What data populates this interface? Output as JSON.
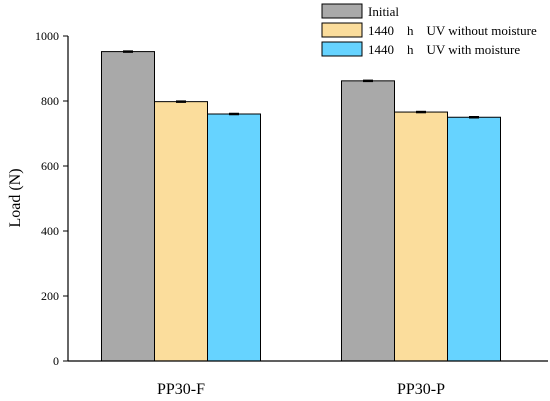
{
  "chart_data": {
    "type": "bar",
    "categories": [
      "PP30-F",
      "PP30-P"
    ],
    "series": [
      {
        "name": "Initial",
        "values": [
          952,
          862
        ],
        "errors": [
          2,
          2
        ],
        "color": "#a9a9a9"
      },
      {
        "name": "1440    h    UV without moisture",
        "values": [
          798,
          766
        ],
        "errors": [
          2,
          2
        ],
        "color": "#fbdd9c"
      },
      {
        "name": "1440    h    UV with moisture",
        "values": [
          760,
          750
        ],
        "errors": [
          2,
          2
        ],
        "color": "#66d3ff"
      }
    ],
    "title": "",
    "xlabel": "",
    "ylabel": "Load (N)",
    "ylim": [
      0,
      1000
    ],
    "yticks": [
      0,
      200,
      400,
      600,
      800,
      1000
    ],
    "grid": false,
    "legend_position": "top-right"
  }
}
